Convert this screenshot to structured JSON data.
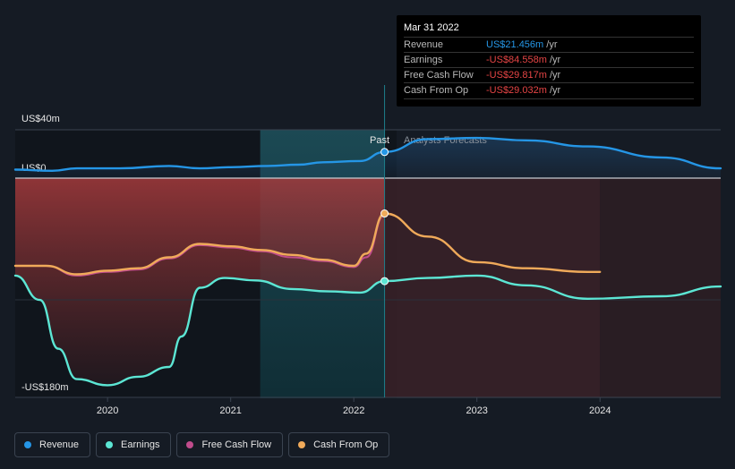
{
  "chart_data": {
    "type": "line",
    "title": "",
    "y_range_label_top": "US$40m",
    "y_zero_label": "US$0",
    "y_range_label_bottom": "-US$180m",
    "ylim": [
      -180,
      40
    ],
    "x_range": [
      2019.25,
      2024.98
    ],
    "x_ticks": [
      {
        "value": 2020,
        "label": "2020"
      },
      {
        "value": 2021,
        "label": "2021"
      },
      {
        "value": 2022,
        "label": "2022"
      },
      {
        "value": 2023,
        "label": "2023"
      },
      {
        "value": 2024,
        "label": "2024"
      }
    ],
    "past_label": "Past",
    "forecast_label": "Analysts Forecasts",
    "forecast_start": 2022.25,
    "highlight_start": 2021.24,
    "series": [
      {
        "key": "revenue",
        "name": "Revenue",
        "color": "#2596e6",
        "past": [
          [
            2019.25,
            7
          ],
          [
            2019.55,
            6
          ],
          [
            2019.75,
            8
          ],
          [
            2020.1,
            8
          ],
          [
            2020.5,
            10
          ],
          [
            2020.75,
            8
          ],
          [
            2021.0,
            9
          ],
          [
            2021.3,
            10
          ],
          [
            2021.55,
            11
          ],
          [
            2021.75,
            13
          ],
          [
            2022.05,
            14
          ],
          [
            2022.25,
            21.456
          ]
        ],
        "forecast": [
          [
            2022.25,
            21.456
          ],
          [
            2022.6,
            32
          ],
          [
            2023.0,
            33
          ],
          [
            2023.4,
            31
          ],
          [
            2023.9,
            26
          ],
          [
            2024.5,
            17
          ],
          [
            2024.98,
            8
          ]
        ]
      },
      {
        "key": "earnings",
        "name": "Earnings",
        "color": "#5ce6d4",
        "past": [
          [
            2019.25,
            -80
          ],
          [
            2019.45,
            -100
          ],
          [
            2019.6,
            -140
          ],
          [
            2019.75,
            -165
          ],
          [
            2020.0,
            -170
          ],
          [
            2020.25,
            -163
          ],
          [
            2020.5,
            -155
          ],
          [
            2020.6,
            -130
          ],
          [
            2020.75,
            -90
          ],
          [
            2020.95,
            -82
          ],
          [
            2021.2,
            -84
          ],
          [
            2021.5,
            -91
          ],
          [
            2021.8,
            -93
          ],
          [
            2022.05,
            -94
          ],
          [
            2022.25,
            -84.558
          ]
        ],
        "forecast": [
          [
            2022.25,
            -84.558
          ],
          [
            2022.6,
            -82
          ],
          [
            2023.0,
            -80
          ],
          [
            2023.4,
            -88
          ],
          [
            2023.9,
            -99
          ],
          [
            2024.5,
            -97
          ],
          [
            2024.98,
            -89
          ]
        ]
      },
      {
        "key": "fcf",
        "name": "Free Cash Flow",
        "color": "#c04c8c",
        "past": [
          [
            2019.25,
            -72
          ],
          [
            2019.5,
            -72
          ],
          [
            2019.75,
            -80
          ],
          [
            2020.0,
            -77
          ],
          [
            2020.25,
            -75
          ],
          [
            2020.5,
            -66
          ],
          [
            2020.75,
            -55
          ],
          [
            2021.0,
            -57
          ],
          [
            2021.25,
            -60
          ],
          [
            2021.5,
            -65
          ],
          [
            2021.75,
            -68
          ],
          [
            2022.0,
            -73
          ],
          [
            2022.1,
            -65
          ],
          [
            2022.25,
            -29.817
          ]
        ],
        "forecast": []
      },
      {
        "key": "cfo",
        "name": "Cash From Op",
        "color": "#f0aa5a",
        "past": [
          [
            2019.25,
            -72
          ],
          [
            2019.5,
            -72
          ],
          [
            2019.75,
            -79
          ],
          [
            2020.0,
            -76
          ],
          [
            2020.25,
            -74
          ],
          [
            2020.5,
            -65
          ],
          [
            2020.75,
            -54
          ],
          [
            2021.0,
            -56
          ],
          [
            2021.25,
            -59
          ],
          [
            2021.5,
            -63
          ],
          [
            2021.75,
            -67
          ],
          [
            2022.0,
            -72
          ],
          [
            2022.1,
            -62
          ],
          [
            2022.25,
            -29.032
          ]
        ],
        "forecast": [
          [
            2022.25,
            -29.032
          ],
          [
            2022.6,
            -48
          ],
          [
            2023.0,
            -69
          ],
          [
            2023.4,
            -74
          ],
          [
            2023.9,
            -77
          ],
          [
            2024.0,
            -77
          ]
        ]
      }
    ]
  },
  "tooltip": {
    "date": "Mar 31 2022",
    "unit": "/yr",
    "rows": [
      {
        "label": "Revenue",
        "value": "US$21.456m",
        "color": "#2596e6"
      },
      {
        "label": "Earnings",
        "value": "-US$84.558m",
        "color": "#e64545"
      },
      {
        "label": "Free Cash Flow",
        "value": "-US$29.817m",
        "color": "#e64545"
      },
      {
        "label": "Cash From Op",
        "value": "-US$29.032m",
        "color": "#e64545"
      }
    ]
  },
  "legend": [
    {
      "label": "Revenue",
      "color": "#2596e6"
    },
    {
      "label": "Earnings",
      "color": "#5ce6d4"
    },
    {
      "label": "Free Cash Flow",
      "color": "#c04c8c"
    },
    {
      "label": "Cash From Op",
      "color": "#f0aa5a"
    }
  ]
}
